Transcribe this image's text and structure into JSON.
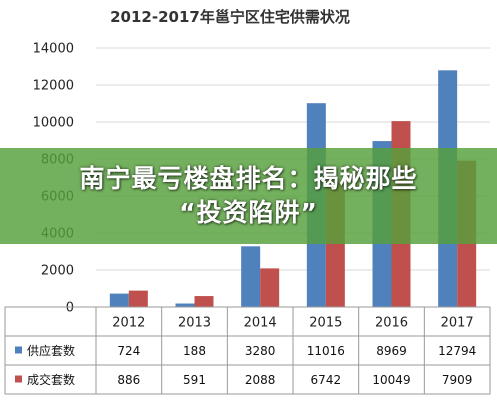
{
  "chart_data": {
    "type": "bar",
    "title": "2012-2017年邕宁区住宅供需状况",
    "categories": [
      "2012",
      "2013",
      "2014",
      "2015",
      "2016",
      "2017"
    ],
    "series": [
      {
        "name": "供应套数",
        "color": "#4f81bd",
        "values": [
          724,
          188,
          3280,
          11016,
          8969,
          12794
        ]
      },
      {
        "name": "成交套数",
        "color": "#c0504d",
        "values": [
          886,
          591,
          2088,
          6742,
          10049,
          7909
        ]
      }
    ],
    "ylim": [
      0,
      14000
    ],
    "yticks": [
      "0",
      "2000",
      "4000",
      "6000",
      "8000",
      "10000",
      "12000",
      "14000"
    ],
    "grid": true,
    "legend": "data-table-rows"
  },
  "overlay": {
    "line1": "南宁最亏楼盘排名：揭秘那些",
    "line2": "“投资陷阱”",
    "color": "#56a03a"
  }
}
